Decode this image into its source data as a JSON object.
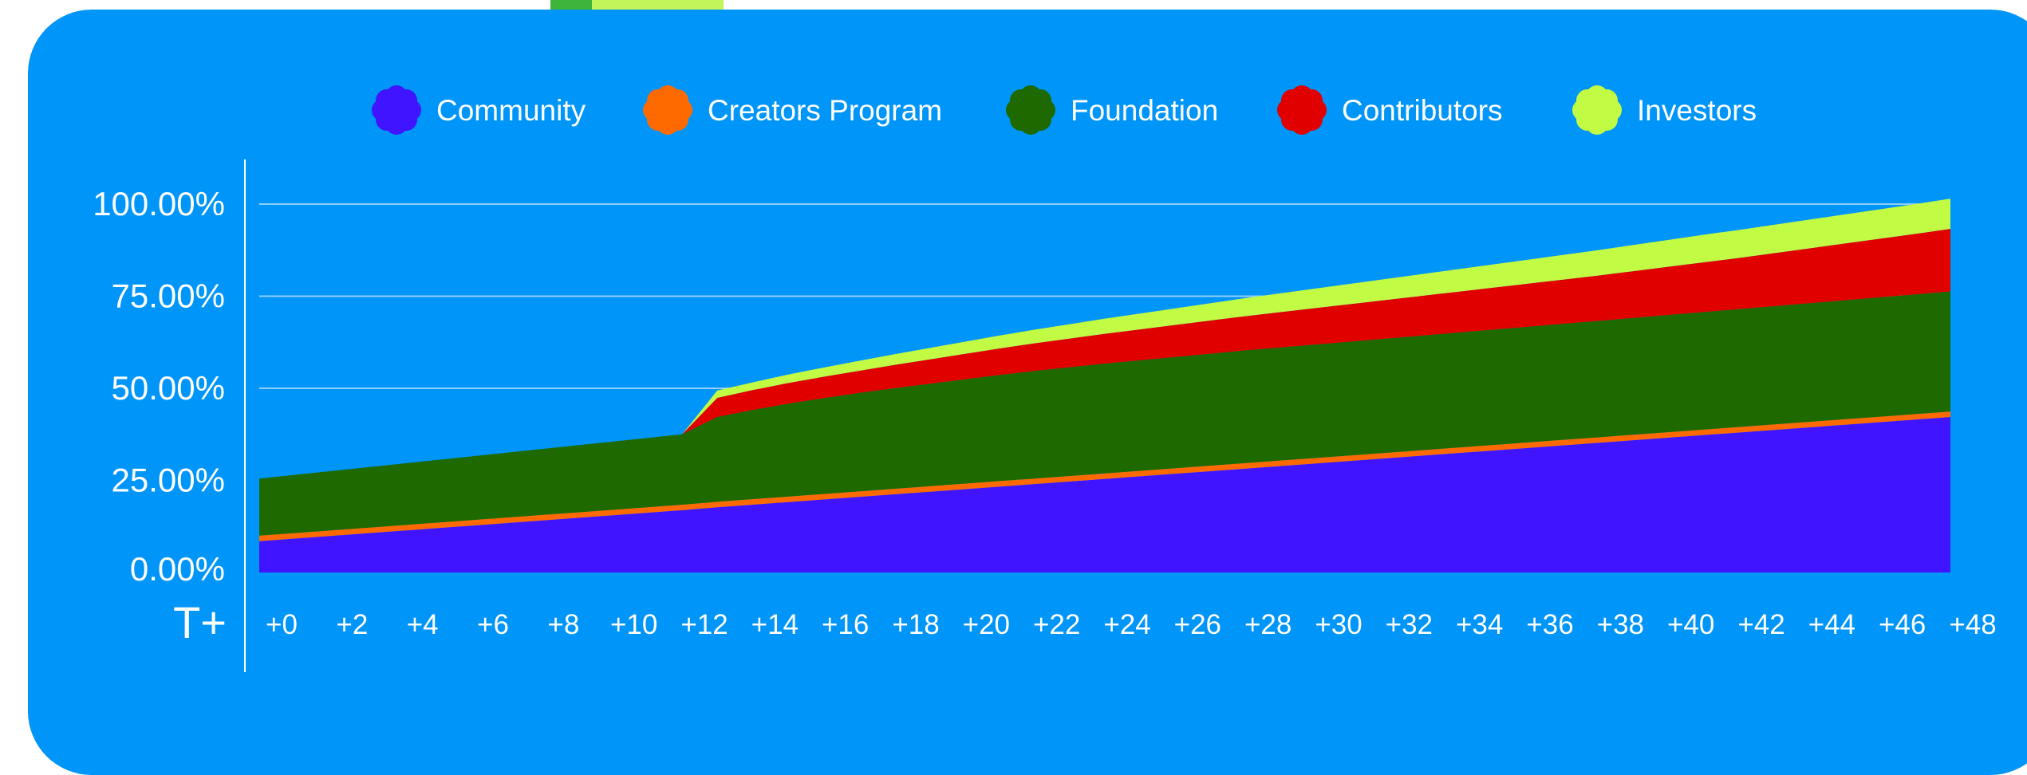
{
  "chart_data": {
    "type": "area",
    "stacked": true,
    "x_prefix_label": "T+",
    "x": [
      0,
      1,
      2,
      3,
      4,
      5,
      6,
      7,
      8,
      9,
      10,
      11,
      12,
      13,
      14,
      15,
      16,
      17,
      18,
      19,
      20,
      21,
      22,
      23,
      24,
      25,
      26,
      27,
      28,
      29,
      30,
      31,
      32,
      33,
      34,
      35,
      36,
      37,
      38,
      39,
      40,
      41,
      42,
      43,
      44,
      45,
      46,
      47,
      48
    ],
    "x_tick_labels": [
      "+0",
      "+2",
      "+4",
      "+6",
      "+8",
      "+10",
      "+12",
      "+14",
      "+16",
      "+18",
      "+20",
      "+22",
      "+24",
      "+26",
      "+28",
      "+30",
      "+32",
      "+34",
      "+36",
      "+38",
      "+40",
      "+42",
      "+44",
      "+46",
      "+48"
    ],
    "y_tick_labels": [
      "0.00%",
      "25.00%",
      "50.00%",
      "75.00%",
      "100.00%"
    ],
    "y_ticks": [
      0,
      25,
      50,
      75,
      100
    ],
    "ylim": [
      0,
      100
    ],
    "grid": true,
    "legend_position": "top",
    "series": [
      {
        "name": "Community",
        "color": "#4114ff",
        "values": [
          8.5,
          9.2,
          9.9,
          10.6,
          11.3,
          12.0,
          12.7,
          13.4,
          14.1,
          14.8,
          15.5,
          16.2,
          16.9,
          17.7,
          18.4,
          19.1,
          19.8,
          20.5,
          21.2,
          21.9,
          22.6,
          23.3,
          24.0,
          24.7,
          25.4,
          26.1,
          26.8,
          27.5,
          28.2,
          28.9,
          29.6,
          30.3,
          31.0,
          31.7,
          32.4,
          33.1,
          33.8,
          34.5,
          35.2,
          35.9,
          36.6,
          37.3,
          38.0,
          38.7,
          39.4,
          40.1,
          40.8,
          41.5,
          42.2
        ]
      },
      {
        "name": "Creators Program",
        "color": "#ff6a00",
        "values": [
          1.5,
          1.5,
          1.5,
          1.5,
          1.5,
          1.5,
          1.5,
          1.5,
          1.5,
          1.5,
          1.5,
          1.5,
          1.5,
          1.5,
          1.5,
          1.5,
          1.5,
          1.5,
          1.5,
          1.5,
          1.5,
          1.5,
          1.5,
          1.5,
          1.5,
          1.5,
          1.5,
          1.5,
          1.5,
          1.5,
          1.5,
          1.5,
          1.5,
          1.5,
          1.5,
          1.5,
          1.5,
          1.5,
          1.5,
          1.5,
          1.5,
          1.5,
          1.5,
          1.5,
          1.5,
          1.5,
          1.5,
          1.5,
          1.5
        ]
      },
      {
        "name": "Foundation",
        "color": "#1e6a00",
        "values": [
          15.5,
          15.8,
          16.1,
          16.4,
          16.7,
          17.0,
          17.3,
          17.6,
          17.9,
          18.2,
          18.5,
          18.8,
          19.1,
          23.0,
          24.2,
          25.2,
          26.0,
          26.7,
          27.3,
          27.8,
          28.3,
          28.8,
          29.2,
          29.5,
          29.8,
          30.0,
          30.2,
          30.4,
          30.6,
          30.7,
          30.8,
          30.9,
          31.0,
          31.1,
          31.2,
          31.3,
          31.4,
          31.5,
          31.6,
          31.7,
          31.8,
          31.9,
          32.0,
          32.1,
          32.2,
          32.3,
          32.4,
          32.5,
          32.6
        ]
      },
      {
        "name": "Contributors",
        "color": "#e00000",
        "values": [
          0,
          0,
          0,
          0,
          0,
          0,
          0,
          0,
          0,
          0,
          0,
          0,
          0,
          5.2,
          5.4,
          5.6,
          5.8,
          6.0,
          6.3,
          6.6,
          6.9,
          7.2,
          7.5,
          7.8,
          8.1,
          8.4,
          8.7,
          9.0,
          9.3,
          9.6,
          9.9,
          10.2,
          10.5,
          10.8,
          11.1,
          11.4,
          11.7,
          12.0,
          12.3,
          12.7,
          13.1,
          13.5,
          13.9,
          14.4,
          14.9,
          15.4,
          15.9,
          16.4,
          17.0
        ]
      },
      {
        "name": "Investors",
        "color": "#c2fb44",
        "values": [
          0,
          0,
          0,
          0,
          0,
          0,
          0,
          0,
          0,
          0,
          0,
          0,
          0,
          2.0,
          2.1,
          2.3,
          2.5,
          2.7,
          2.9,
          3.1,
          3.3,
          3.5,
          3.7,
          3.9,
          4.1,
          4.3,
          4.5,
          4.7,
          4.9,
          5.1,
          5.3,
          5.5,
          5.7,
          5.9,
          6.1,
          6.3,
          6.5,
          6.7,
          6.9,
          7.1,
          7.3,
          7.5,
          7.6,
          7.7,
          7.8,
          7.9,
          8.0,
          8.1,
          8.2
        ]
      }
    ]
  }
}
